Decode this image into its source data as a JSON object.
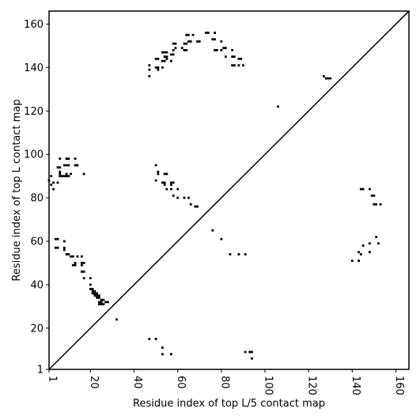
{
  "chart_data": {
    "type": "scatter",
    "xlabel": "Residue index of top L/5 contact map",
    "ylabel": "Residue index of top L contact map",
    "xlim": [
      1,
      166
    ],
    "ylim": [
      1,
      166
    ],
    "xticks": [
      1,
      20,
      40,
      60,
      80,
      100,
      120,
      140,
      160
    ],
    "yticks": [
      1,
      20,
      40,
      60,
      80,
      100,
      120,
      140,
      160
    ],
    "diagonal": true,
    "marker_color": "#000000",
    "points": [
      [
        73,
        156
      ],
      [
        74,
        156
      ],
      [
        77,
        156
      ],
      [
        64,
        155
      ],
      [
        65,
        155
      ],
      [
        67,
        155
      ],
      [
        76,
        153
      ],
      [
        77,
        153
      ],
      [
        80,
        152
      ],
      [
        65,
        152
      ],
      [
        66,
        152
      ],
      [
        69,
        152
      ],
      [
        70,
        152
      ],
      [
        58,
        151
      ],
      [
        59,
        151
      ],
      [
        63,
        151
      ],
      [
        64,
        151
      ],
      [
        59,
        149
      ],
      [
        62,
        149
      ],
      [
        81,
        149
      ],
      [
        82,
        149
      ],
      [
        77,
        148
      ],
      [
        78,
        148
      ],
      [
        80,
        148
      ],
      [
        58,
        148
      ],
      [
        63,
        148
      ],
      [
        64,
        148
      ],
      [
        85,
        148
      ],
      [
        53,
        147
      ],
      [
        54,
        147
      ],
      [
        55,
        147
      ],
      [
        57,
        146
      ],
      [
        58,
        146
      ],
      [
        54,
        145
      ],
      [
        55,
        145
      ],
      [
        82,
        145
      ],
      [
        85,
        145
      ],
      [
        86,
        145
      ],
      [
        50,
        144
      ],
      [
        51,
        144
      ],
      [
        55,
        144
      ],
      [
        53,
        143
      ],
      [
        54,
        143
      ],
      [
        57,
        143
      ],
      [
        88,
        144
      ],
      [
        89,
        144
      ],
      [
        47,
        141
      ],
      [
        50,
        140
      ],
      [
        51,
        140
      ],
      [
        53,
        140
      ],
      [
        47,
        139
      ],
      [
        51,
        139
      ],
      [
        85,
        141
      ],
      [
        86,
        141
      ],
      [
        88,
        141
      ],
      [
        90,
        141
      ],
      [
        47,
        136
      ],
      [
        127,
        136
      ],
      [
        128,
        135
      ],
      [
        129,
        135
      ],
      [
        130,
        135
      ],
      [
        106,
        122
      ],
      [
        6,
        98
      ],
      [
        9,
        98
      ],
      [
        10,
        98
      ],
      [
        13,
        98
      ],
      [
        8,
        95
      ],
      [
        9,
        95
      ],
      [
        10,
        95
      ],
      [
        13,
        95
      ],
      [
        14,
        95
      ],
      [
        5,
        94
      ],
      [
        6,
        94
      ],
      [
        50,
        95
      ],
      [
        6,
        92
      ],
      [
        6,
        91
      ],
      [
        9,
        91
      ],
      [
        11,
        91
      ],
      [
        9,
        90
      ],
      [
        10,
        90
      ],
      [
        17,
        91
      ],
      [
        51,
        92
      ],
      [
        51,
        91
      ],
      [
        54,
        91
      ],
      [
        55,
        91
      ],
      [
        2,
        90
      ],
      [
        6,
        90
      ],
      [
        7,
        90
      ],
      [
        8,
        90
      ],
      [
        1,
        88
      ],
      [
        3,
        87
      ],
      [
        5,
        87
      ],
      [
        2,
        86
      ],
      [
        50,
        88
      ],
      [
        53,
        87
      ],
      [
        54,
        87
      ],
      [
        57,
        87
      ],
      [
        58,
        87
      ],
      [
        54,
        86
      ],
      [
        57,
        86
      ],
      [
        3,
        84
      ],
      [
        55,
        84
      ],
      [
        57,
        84
      ],
      [
        60,
        84
      ],
      [
        58,
        81
      ],
      [
        60,
        80
      ],
      [
        63,
        80
      ],
      [
        65,
        80
      ],
      [
        66,
        77
      ],
      [
        68,
        76
      ],
      [
        69,
        76
      ],
      [
        144,
        84
      ],
      [
        145,
        84
      ],
      [
        148,
        84
      ],
      [
        149,
        81
      ],
      [
        150,
        81
      ],
      [
        150,
        77
      ],
      [
        151,
        77
      ],
      [
        153,
        77
      ],
      [
        4,
        61
      ],
      [
        5,
        61
      ],
      [
        8,
        60
      ],
      [
        4,
        57
      ],
      [
        5,
        57
      ],
      [
        8,
        57
      ],
      [
        8,
        56
      ],
      [
        9,
        54
      ],
      [
        10,
        54
      ],
      [
        11,
        53
      ],
      [
        12,
        53
      ],
      [
        14,
        53
      ],
      [
        16,
        53
      ],
      [
        13,
        50
      ],
      [
        16,
        50
      ],
      [
        17,
        50
      ],
      [
        12,
        49
      ],
      [
        13,
        49
      ],
      [
        16,
        49
      ],
      [
        16,
        46
      ],
      [
        17,
        46
      ],
      [
        17,
        43
      ],
      [
        20,
        43
      ],
      [
        20,
        40
      ],
      [
        76,
        65
      ],
      [
        80,
        61
      ],
      [
        84,
        54
      ],
      [
        88,
        54
      ],
      [
        91,
        54
      ],
      [
        140,
        51
      ],
      [
        143,
        51
      ],
      [
        143,
        55
      ],
      [
        144,
        54
      ],
      [
        145,
        58
      ],
      [
        148,
        59
      ],
      [
        148,
        55
      ],
      [
        152,
        59
      ],
      [
        151,
        62
      ],
      [
        20,
        38
      ],
      [
        21,
        38
      ],
      [
        21,
        37
      ],
      [
        22,
        37
      ],
      [
        21,
        36
      ],
      [
        22,
        36
      ],
      [
        23,
        36
      ],
      [
        22,
        35
      ],
      [
        23,
        35
      ],
      [
        24,
        35
      ],
      [
        23,
        34
      ],
      [
        24,
        34
      ],
      [
        25,
        33
      ],
      [
        26,
        33
      ],
      [
        24,
        32
      ],
      [
        25,
        32
      ],
      [
        27,
        32
      ],
      [
        28,
        32
      ],
      [
        24,
        31
      ],
      [
        25,
        31
      ],
      [
        26,
        31
      ],
      [
        32,
        24
      ],
      [
        47,
        15
      ],
      [
        50,
        15
      ],
      [
        53,
        11
      ],
      [
        53,
        8
      ],
      [
        57,
        8
      ],
      [
        91,
        9
      ],
      [
        93,
        9
      ],
      [
        94,
        9
      ],
      [
        94,
        6
      ]
    ]
  }
}
